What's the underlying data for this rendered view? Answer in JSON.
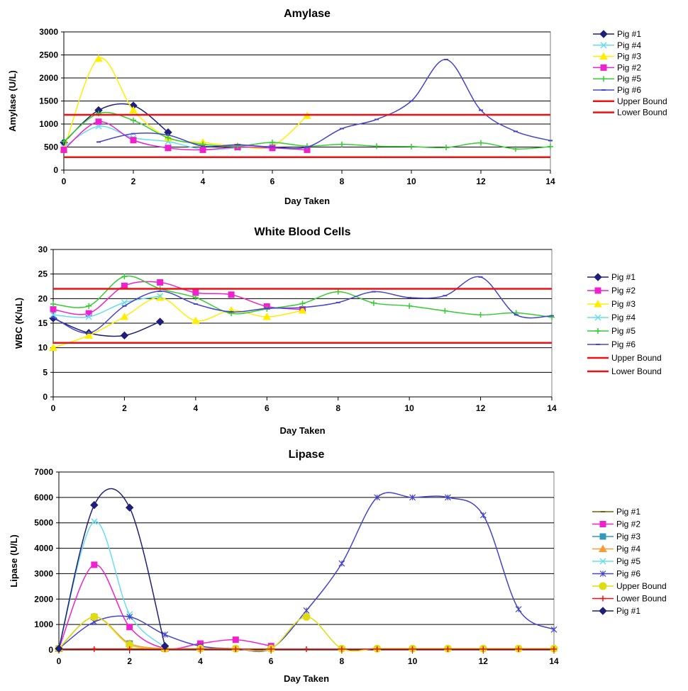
{
  "chart_data": [
    {
      "type": "line",
      "title": "Amylase",
      "xlabel": "Day Taken",
      "ylabel": "Amylase (U/L)",
      "xlim": [
        0,
        14
      ],
      "ylim": [
        0,
        3000
      ],
      "xticks": [
        0,
        2,
        4,
        6,
        8,
        10,
        12,
        14
      ],
      "yticks": [
        0,
        500,
        1000,
        1500,
        2000,
        2500,
        3000
      ],
      "grid": true,
      "legend_position": "right",
      "series": [
        {
          "name": "Pig #1",
          "color": "#1f1f7a",
          "marker": "diamond",
          "x": [
            0,
            1,
            2,
            3
          ],
          "y": [
            600,
            1300,
            1400,
            820
          ]
        },
        {
          "name": "Pig #4",
          "color": "#66ddee",
          "marker": "x",
          "x": [
            0,
            1,
            2,
            3,
            4,
            5,
            6
          ],
          "y": [
            500,
            950,
            700,
            620,
            450,
            480,
            520
          ]
        },
        {
          "name": "Pig #3",
          "color": "#ffee00",
          "marker": "triangle",
          "x": [
            0,
            1,
            2,
            3,
            4,
            5,
            6,
            7
          ],
          "y": [
            450,
            2420,
            1300,
            700,
            600,
            520,
            520,
            1180
          ]
        },
        {
          "name": "Pig #2",
          "color": "#ee22cc",
          "marker": "square",
          "x": [
            0,
            1,
            2,
            3,
            4,
            5,
            6,
            7
          ],
          "y": [
            440,
            1050,
            650,
            480,
            440,
            500,
            480,
            440
          ]
        },
        {
          "name": "Pig #5",
          "color": "#33cc33",
          "marker": "plus",
          "x": [
            0,
            1,
            2,
            3,
            4,
            5,
            6,
            7,
            8,
            9,
            10,
            11,
            12,
            13,
            14
          ],
          "y": [
            620,
            1230,
            1080,
            700,
            560,
            520,
            600,
            520,
            560,
            520,
            510,
            490,
            590,
            460,
            510
          ]
        },
        {
          "name": "Pig #6",
          "color": "#4444cc",
          "marker": "dash",
          "x": [
            1,
            2,
            3,
            4,
            5,
            6,
            7,
            8,
            9,
            10,
            11,
            12,
            13,
            14
          ],
          "y": [
            610,
            790,
            760,
            520,
            550,
            500,
            500,
            900,
            1100,
            1500,
            2400,
            1300,
            840,
            640
          ]
        },
        {
          "name": "Upper Bound",
          "color": "#ee1111",
          "marker": "none",
          "line_style": "horizontal",
          "y_value": 1200
        },
        {
          "name": "Lower Bound",
          "color": "#ee1111",
          "marker": "none",
          "line_style": "horizontal",
          "y_value": 280
        }
      ]
    },
    {
      "type": "line",
      "title": "White Blood Cells",
      "xlabel": "Day Taken",
      "ylabel": "WBC (K/uL)",
      "xlim": [
        0,
        14
      ],
      "ylim": [
        0,
        30
      ],
      "xticks": [
        0,
        2,
        4,
        6,
        8,
        10,
        12,
        14
      ],
      "yticks": [
        0,
        5,
        10,
        15,
        20,
        25,
        30
      ],
      "grid": true,
      "legend_position": "right",
      "series": [
        {
          "name": "Pig #1",
          "color": "#1f1f7a",
          "marker": "diamond",
          "x": [
            0,
            1,
            2,
            3
          ],
          "y": [
            16,
            13,
            12.5,
            15.3
          ]
        },
        {
          "name": "Pig #2",
          "color": "#ee22cc",
          "marker": "square",
          "x": [
            0,
            1,
            2,
            3,
            4,
            5,
            6,
            7
          ],
          "y": [
            17.8,
            17,
            22.6,
            23.3,
            21.2,
            20.8,
            18.4,
            17.8
          ]
        },
        {
          "name": "Pig #3",
          "color": "#ffee00",
          "marker": "triangle",
          "x": [
            0,
            1,
            2,
            3,
            4,
            5,
            6,
            7
          ],
          "y": [
            10,
            12.5,
            16.3,
            20.2,
            15.5,
            17.6,
            16.3,
            17.6
          ]
        },
        {
          "name": "Pig #4",
          "color": "#66ddee",
          "marker": "x",
          "x": [
            0,
            1,
            2,
            3
          ],
          "y": [
            16.7,
            16.3,
            19.2,
            20.5
          ]
        },
        {
          "name": "Pig #5",
          "color": "#33cc33",
          "marker": "plus",
          "x": [
            0,
            1,
            2,
            3,
            4,
            5,
            6,
            7,
            8,
            9,
            10,
            11,
            12,
            13,
            14
          ],
          "y": [
            18.9,
            18.5,
            24.5,
            22,
            20.2,
            17,
            17.9,
            19,
            21.4,
            19.1,
            18.5,
            17.5,
            16.7,
            17.1,
            16.2
          ]
        },
        {
          "name": "Pig #6",
          "color": "#4444cc",
          "marker": "dash",
          "x": [
            0,
            1,
            2,
            3,
            4,
            5,
            6,
            7,
            8,
            9,
            10,
            11,
            12,
            13,
            14
          ],
          "y": [
            16.2,
            13,
            18.5,
            21.5,
            18.9,
            17.3,
            18,
            18.2,
            19.2,
            21.4,
            20.2,
            20.6,
            24.4,
            16.7,
            16.5
          ]
        },
        {
          "name": "Upper Bound",
          "color": "#ee1111",
          "marker": "none",
          "line_style": "horizontal",
          "y_value": 22
        },
        {
          "name": "Lower Bound",
          "color": "#ee1111",
          "marker": "none",
          "line_style": "horizontal",
          "y_value": 11
        }
      ]
    },
    {
      "type": "line",
      "title": "Lipase",
      "xlabel": "Day Taken",
      "ylabel": "Lipase (U/L)",
      "xlim": [
        0,
        14
      ],
      "ylim": [
        0,
        7000
      ],
      "xticks": [
        0,
        2,
        4,
        6,
        8,
        10,
        12,
        14
      ],
      "yticks": [
        0,
        1000,
        2000,
        3000,
        4000,
        5000,
        6000,
        7000
      ],
      "grid": true,
      "legend_position": "right",
      "series": [
        {
          "name": "Pig #1",
          "color": "#666600",
          "marker": "dash",
          "x": [
            0,
            1,
            2,
            3,
            4,
            5
          ],
          "y": [
            30,
            40,
            40,
            30,
            30,
            30
          ]
        },
        {
          "name": "Pig #2",
          "color": "#ee22cc",
          "marker": "square",
          "x": [
            0,
            1,
            2,
            3,
            4,
            5,
            6
          ],
          "y": [
            50,
            3350,
            900,
            60,
            250,
            400,
            150
          ]
        },
        {
          "name": "Pig #3",
          "color": "#3399bb",
          "marker": "square",
          "x": [
            0,
            1,
            2,
            3
          ],
          "y": [
            50,
            1300,
            250,
            50
          ]
        },
        {
          "name": "Pig #4",
          "color": "#ff9933",
          "marker": "triangle",
          "x": [
            0,
            1,
            2,
            3
          ],
          "y": [
            50,
            1300,
            250,
            50
          ]
        },
        {
          "name": "Pig #5",
          "color": "#66ddee",
          "marker": "x",
          "x": [
            0,
            1,
            2,
            3
          ],
          "y": [
            50,
            5050,
            1400,
            100
          ]
        },
        {
          "name": "Pig #6",
          "color": "#4444cc",
          "marker": "asterisk",
          "x": [
            0,
            1,
            2,
            3,
            4,
            5,
            6,
            7,
            8,
            9,
            10,
            11,
            12,
            13,
            14
          ],
          "y": [
            50,
            1100,
            1300,
            600,
            150,
            50,
            50,
            1550,
            3400,
            6000,
            6000,
            6000,
            5300,
            1600,
            800
          ]
        },
        {
          "name": "Upper Bound",
          "color": "#dddd11",
          "marker": "circle",
          "x": [
            0,
            1,
            2,
            3,
            4,
            5,
            6,
            7,
            8,
            9,
            10,
            11,
            12,
            13,
            14
          ],
          "y": [
            50,
            1300,
            200,
            50,
            50,
            50,
            50,
            1300,
            50,
            50,
            50,
            50,
            50,
            50,
            50
          ]
        },
        {
          "name": "Lower Bound",
          "color": "#ee1111",
          "marker": "plus",
          "x": [
            0,
            1,
            2,
            3,
            4,
            5,
            6,
            7,
            8,
            9,
            10,
            11,
            12,
            13,
            14
          ],
          "y": [
            30,
            30,
            30,
            30,
            30,
            30,
            30,
            30,
            30,
            30,
            30,
            30,
            30,
            30,
            30
          ]
        },
        {
          "name": "Pig #1",
          "color": "#1f1f7a",
          "marker": "diamond",
          "x": [
            0,
            1,
            2,
            3
          ],
          "y": [
            50,
            5700,
            5600,
            150
          ]
        }
      ]
    }
  ]
}
